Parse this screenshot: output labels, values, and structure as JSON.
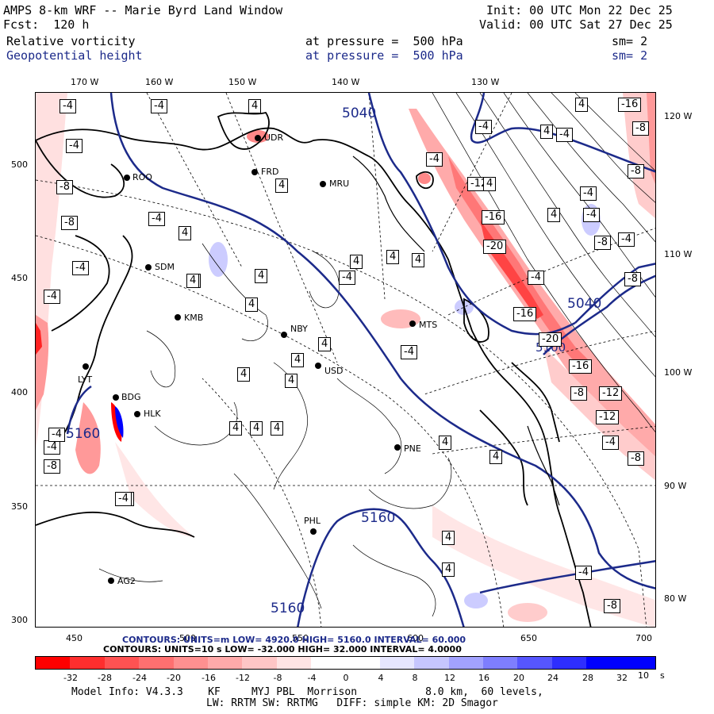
{
  "header": {
    "title": "AMPS 8-km WRF -- Marie Byrd Land Window",
    "init": "Init: 00 UTC Mon 22 Dec 25",
    "fcst": "Fcst:  120 h",
    "valid": "Valid: 00 UTC Sat 27 Dec 25",
    "field1": {
      "name": "Relative vorticity",
      "level": "at pressure =  500 hPa",
      "sm": "sm= 2"
    },
    "field2": {
      "name": "Geopotential height",
      "level": "at pressure =  500 hPa",
      "sm": "sm= 2"
    }
  },
  "axes": {
    "top_lon": [
      "170 W",
      "160 W",
      "150 W",
      "140 W",
      "130 W"
    ],
    "right_lon": [
      "120 W",
      "110 W",
      "100 W",
      "90 W",
      "80 W"
    ],
    "left_y": [
      "500",
      "450",
      "400",
      "350",
      "300"
    ],
    "bottom_x": [
      "450",
      "500",
      "550",
      "600",
      "650",
      "700"
    ]
  },
  "height_labels": [
    "5040",
    "5040",
    "5160",
    "5160",
    "5160",
    "5100"
  ],
  "vort_labels": [
    "-4",
    "-4",
    "-4",
    "-8",
    "-8",
    "-4",
    "-4",
    "-4",
    "-4",
    "-8",
    "-4",
    "4",
    "4",
    "4",
    "4",
    "4",
    "4",
    "4",
    "4",
    "4",
    "4",
    "-4",
    "-12",
    "-16",
    "-20",
    "-4",
    "-16",
    "-20",
    "-16",
    "-12",
    "-12",
    "-8",
    "-4",
    "-8",
    "-8",
    "-4",
    "-16",
    "-8",
    "-4",
    "-8",
    "4",
    "4",
    "-4",
    "-8",
    "-4",
    "-4",
    "4",
    "-4",
    "-4",
    "-4",
    "-8",
    "-4",
    "4",
    "4",
    "4",
    "4",
    "-8",
    "4",
    "4",
    "-4",
    "4",
    "4",
    "4",
    "4",
    "4",
    "4"
  ],
  "stations": [
    {
      "code": "ROO"
    },
    {
      "code": "FRD"
    },
    {
      "code": "MRU"
    },
    {
      "code": "SDM"
    },
    {
      "code": "KMB"
    },
    {
      "code": "NBY"
    },
    {
      "code": "USD"
    },
    {
      "code": "MTS"
    },
    {
      "code": "LYT"
    },
    {
      "code": "BDG"
    },
    {
      "code": "HLK"
    },
    {
      "code": "PNE"
    },
    {
      "code": "PHL"
    },
    {
      "code": "AG2"
    },
    {
      "code": "UDR"
    }
  ],
  "contour_info": {
    "height": {
      "text": "CONTOURS: UNITS=m   LOW=  4920.0   HIGH=  5160.0   INTERVAL=  60.000"
    },
    "vort": {
      "text": "CONTOURS:  UNITS=10    s     LOW=  -32.000      HIGH=  32.000     INTERVAL=  4.0000"
    }
  },
  "colorbar": {
    "labels": [
      "-32",
      "-28",
      "-24",
      "-20",
      "-16",
      "-12",
      "-8",
      "-4",
      "0",
      "4",
      "8",
      "12",
      "16",
      "20",
      "24",
      "28",
      "32"
    ],
    "unit": "10    s",
    "colors": [
      "#ff0000",
      "#ff3333",
      "#ff5555",
      "#ff7777",
      "#ff9999",
      "#ffaaaa",
      "#ffcccc",
      "#ffe6e6",
      "#ffffff",
      "#ffffff",
      "#e6e6ff",
      "#ccccff",
      "#aaaaff",
      "#8888ff",
      "#6666ff",
      "#3333ff",
      "#0000ff"
    ]
  },
  "model_info": {
    "line1": "Model Info: V4.3.3    KF     MYJ PBL  Morrison           8.0 km,  60 levels,",
    "line2": "LW: RRTM SW: RRTMG   DIFF: simple KM: 2D Smagor"
  }
}
